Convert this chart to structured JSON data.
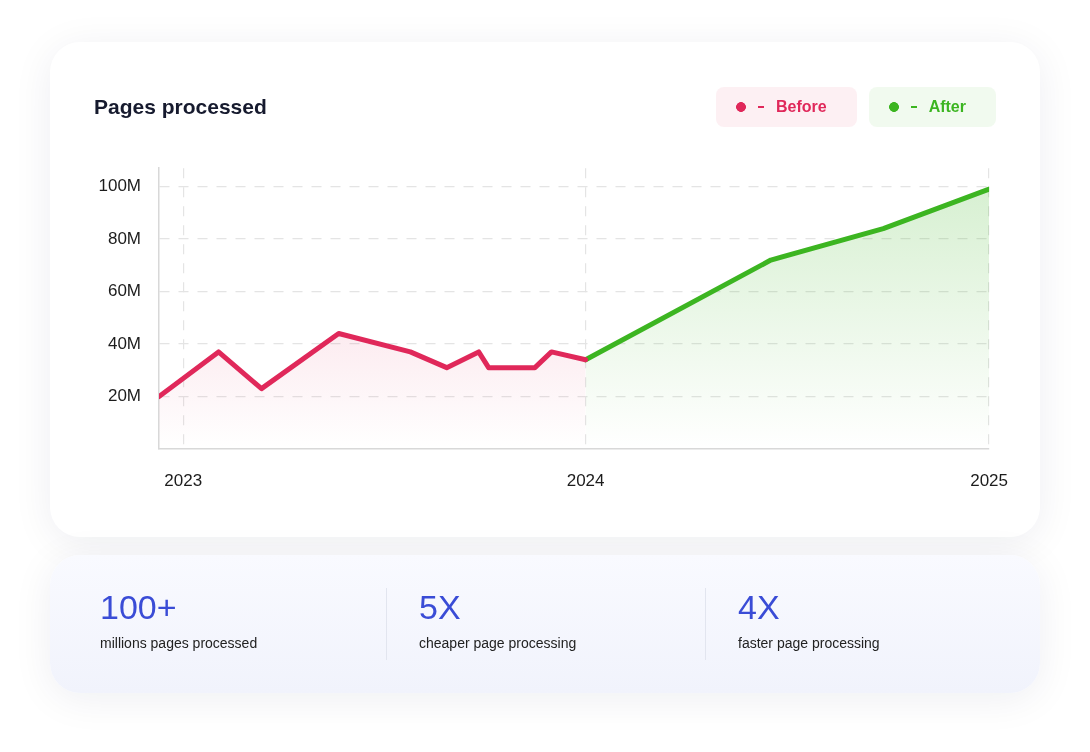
{
  "chart_data": [
    {
      "type": "area",
      "title": "Pages processed",
      "xlim": [
        "2022-12-10",
        "2025-01-01"
      ],
      "ylim": [
        0,
        107
      ],
      "xticks": [
        "2023",
        "2024",
        "2025"
      ],
      "yticks": [
        {
          "value": 20,
          "label": "20M"
        },
        {
          "value": 40,
          "label": "40M"
        },
        {
          "value": 60,
          "label": "60M"
        },
        {
          "value": 80,
          "label": "80M"
        },
        {
          "value": 100,
          "label": "100M"
        }
      ],
      "grid": true,
      "legend": "top right",
      "marker": "none",
      "line_style": "solid",
      "series": [
        {
          "name": "Before",
          "color": "#e0285a",
          "x": [
            "2022-12-10",
            "2023-02-02",
            "2023-03-13",
            "2023-05-22",
            "2023-07-26",
            "2023-08-28",
            "2023-09-26",
            "2023-10-05",
            "2023-11-16",
            "2023-12-01",
            "2024-01-01"
          ],
          "values": [
            20,
            37,
            23,
            44,
            37,
            31,
            37,
            31,
            31,
            37,
            34
          ]
        },
        {
          "name": "After",
          "color": "#3cb521",
          "x": [
            "2024-01-01",
            "2024-06-17",
            "2024-09-27",
            "2025-01-01"
          ],
          "values": [
            34,
            72,
            84,
            99
          ]
        }
      ]
    },
    {
      "type": "other",
      "annotations": [
        "100+",
        "millions pages processed",
        "5X",
        "cheaper page processing",
        "4X",
        "faster page processing"
      ]
    }
  ]
}
